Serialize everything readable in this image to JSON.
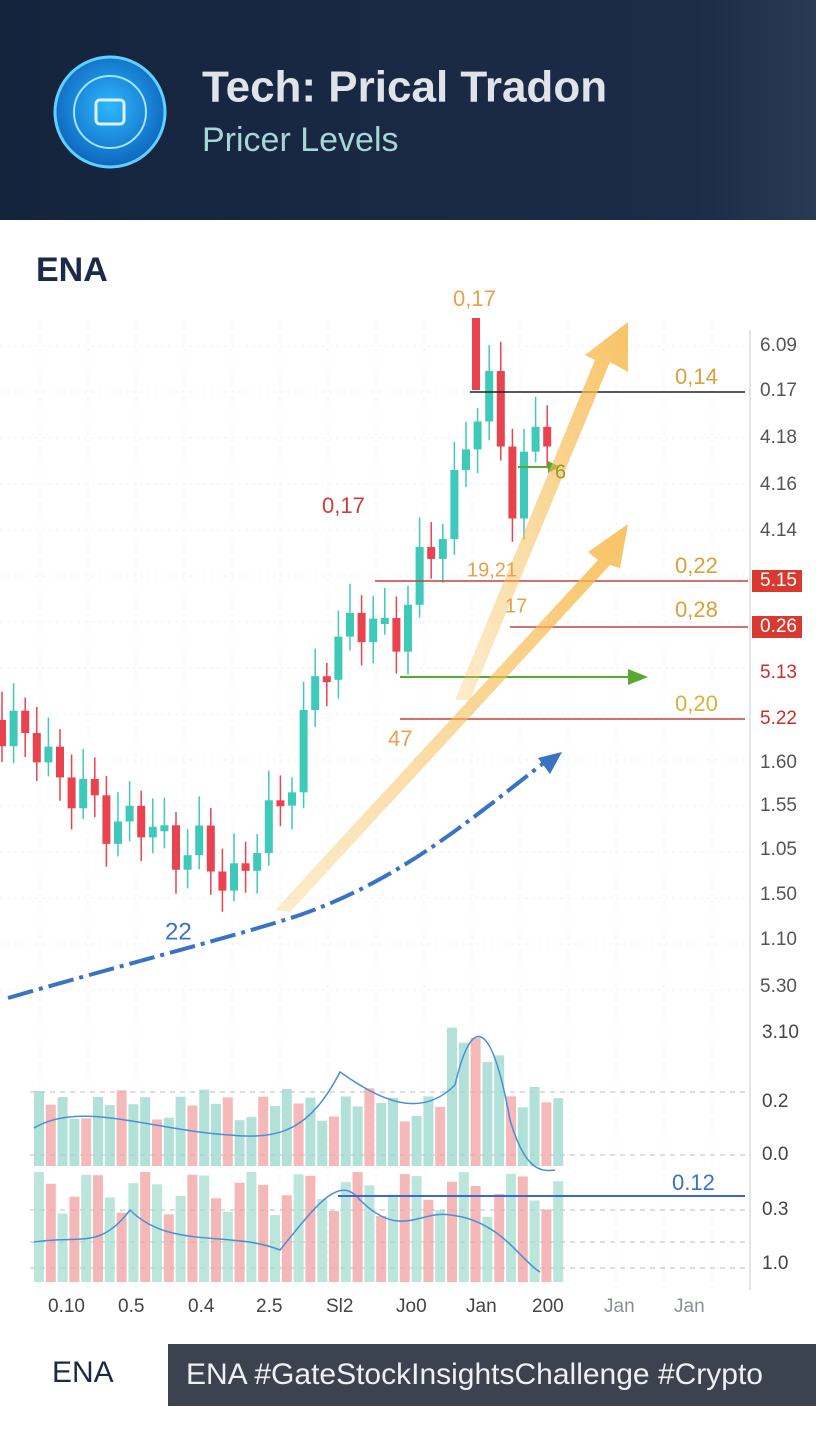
{
  "header": {
    "title": "Tech: Prical Tradon",
    "subtitle": "Pricer Levels"
  },
  "chart": {
    "symbol": "ENA",
    "price_axis_labels": [
      "6.09",
      "0.17",
      "4.18",
      "4.16",
      "4.14",
      "5.15",
      "0.26",
      "5.13",
      "5.22",
      "1.60",
      "1.55",
      "1.05",
      "1.50",
      "1.10",
      "5.30"
    ],
    "annotations": [
      "0,17",
      "0,14",
      "0,17",
      "6",
      "19,21",
      "0,22",
      "17",
      "0,28",
      "0,20",
      "47",
      "22",
      "0.12"
    ],
    "volume_axis_labels": [
      "3.10",
      "0.2",
      "0.0",
      "0.3",
      "1.0"
    ],
    "x_axis_labels": [
      "0.10",
      "0.5",
      "0.4",
      "2.5",
      "Sl2",
      "Jo0",
      "Jan",
      "200",
      "Jan",
      "Jan"
    ]
  },
  "footer": {
    "logo": "ENA",
    "tags": "ENA #GateStockInsightsChallenge #Crypto"
  }
}
